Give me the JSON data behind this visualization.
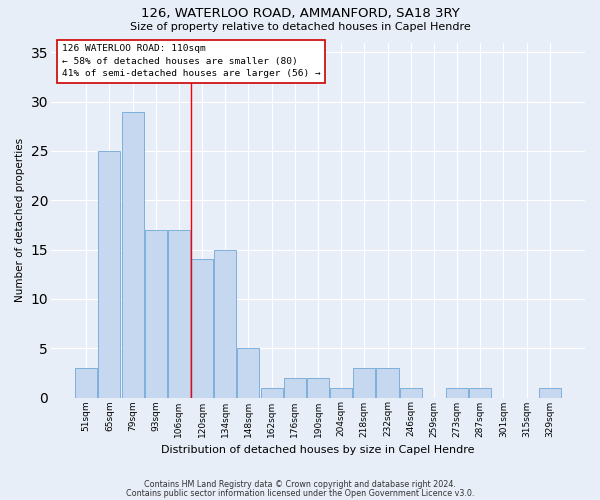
{
  "title": "126, WATERLOO ROAD, AMMANFORD, SA18 3RY",
  "subtitle": "Size of property relative to detached houses in Capel Hendre",
  "xlabel_bottom": "Distribution of detached houses by size in Capel Hendre",
  "ylabel": "Number of detached properties",
  "footnote1": "Contains HM Land Registry data © Crown copyright and database right 2024.",
  "footnote2": "Contains public sector information licensed under the Open Government Licence v3.0.",
  "categories": [
    "51sqm",
    "65sqm",
    "79sqm",
    "93sqm",
    "106sqm",
    "120sqm",
    "134sqm",
    "148sqm",
    "162sqm",
    "176sqm",
    "190sqm",
    "204sqm",
    "218sqm",
    "232sqm",
    "246sqm",
    "259sqm",
    "273sqm",
    "287sqm",
    "301sqm",
    "315sqm",
    "329sqm"
  ],
  "values": [
    3,
    25,
    29,
    17,
    17,
    14,
    15,
    5,
    1,
    2,
    2,
    1,
    3,
    3,
    1,
    0,
    1,
    1,
    0,
    0,
    1
  ],
  "bar_color": "#c5d8f0",
  "bar_edge_color": "#6fa8d6",
  "background_color": "#e8eef8",
  "grid_color": "#ffffff",
  "annotation_line1": "126 WATERLOO ROAD: 110sqm",
  "annotation_line2": "← 58% of detached houses are smaller (80)",
  "annotation_line3": "41% of semi-detached houses are larger (56) →",
  "annotation_box_color": "#ffffff",
  "annotation_box_edge_color": "#cc0000",
  "red_line_x": 4.5,
  "ylim": [
    0,
    36
  ],
  "yticks": [
    0,
    5,
    10,
    15,
    20,
    25,
    30,
    35
  ]
}
